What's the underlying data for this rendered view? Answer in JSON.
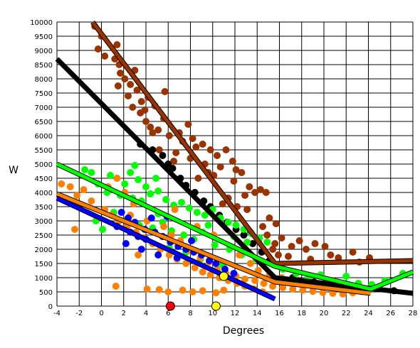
{
  "chart_data": {
    "type": "scatter",
    "xlabel": "Degrees",
    "ylabel": "W",
    "xlim": [
      -4,
      28
    ],
    "ylim": [
      0,
      10000
    ],
    "x_ticks": [
      "-4",
      "-2",
      "0",
      "2",
      "4",
      "6",
      "8",
      "10",
      "12",
      "14",
      "16",
      "18",
      "20",
      "22",
      "24",
      "26",
      "28"
    ],
    "y_ticks": [
      "0",
      "500",
      "1000",
      "1500",
      "2000",
      "2500",
      "3000",
      "3500",
      "4000",
      "4500",
      "5000",
      "5500",
      "6000",
      "6500",
      "7000",
      "7500",
      "8000",
      "8500",
      "9000",
      "9500",
      "10000"
    ],
    "grid": true,
    "legend": "none",
    "series": [
      {
        "color": "#993300",
        "points": [
          [
            -0.6,
            9850
          ],
          [
            0,
            9500
          ],
          [
            1.4,
            9200
          ],
          [
            -0.3,
            9050
          ],
          [
            0.3,
            8800
          ],
          [
            1.2,
            8700
          ],
          [
            1.6,
            8500
          ],
          [
            1.7,
            8200
          ],
          [
            2.1,
            8000
          ],
          [
            2.6,
            7800
          ],
          [
            3.2,
            7600
          ],
          [
            3.0,
            8300
          ],
          [
            1.5,
            7750
          ],
          [
            2.4,
            7400
          ],
          [
            3.6,
            7200
          ],
          [
            4.2,
            7350
          ],
          [
            5.7,
            7550
          ],
          [
            2.8,
            7000
          ],
          [
            3.5,
            6800
          ],
          [
            4.0,
            6500
          ],
          [
            4.4,
            6300
          ],
          [
            4.6,
            6100
          ],
          [
            5.1,
            6200
          ],
          [
            5.6,
            6600
          ],
          [
            6.1,
            6000
          ],
          [
            7.0,
            6100
          ],
          [
            7.8,
            6400
          ],
          [
            8.2,
            5900
          ],
          [
            8.5,
            5600
          ],
          [
            9.1,
            5700
          ],
          [
            9.8,
            5500
          ],
          [
            10.4,
            5300
          ],
          [
            11.2,
            5500
          ],
          [
            11.8,
            5100
          ],
          [
            10.7,
            4900
          ],
          [
            12.1,
            4800
          ],
          [
            9.6,
            4700
          ],
          [
            8.7,
            4500
          ],
          [
            11.9,
            4400
          ],
          [
            12.6,
            4700
          ],
          [
            13.3,
            4200
          ],
          [
            13.8,
            4000
          ],
          [
            14.3,
            4100
          ],
          [
            12.9,
            3900
          ],
          [
            11.4,
            3800
          ],
          [
            10.9,
            3600
          ],
          [
            12.2,
            3500
          ],
          [
            13.1,
            3400
          ],
          [
            14.8,
            4000
          ],
          [
            15.1,
            3100
          ],
          [
            15.7,
            2900
          ],
          [
            14.5,
            2800
          ],
          [
            13.4,
            2600
          ],
          [
            14.9,
            2500
          ],
          [
            16.2,
            2400
          ],
          [
            15.6,
            2200
          ],
          [
            17.1,
            2100
          ],
          [
            17.8,
            2300
          ],
          [
            18.4,
            2000
          ],
          [
            19.2,
            2200
          ],
          [
            20.1,
            2100
          ],
          [
            20.6,
            1800
          ],
          [
            21.3,
            1700
          ],
          [
            22.6,
            1900
          ],
          [
            24.1,
            1700
          ],
          [
            23.2,
            1550
          ],
          [
            5.2,
            5500
          ],
          [
            6.7,
            5400
          ],
          [
            7.3,
            5800
          ],
          [
            6.5,
            5100
          ],
          [
            8.0,
            5200
          ],
          [
            9.3,
            5000
          ],
          [
            10.1,
            4600
          ],
          [
            15.4,
            2000
          ],
          [
            16.8,
            1750
          ],
          [
            18.8,
            1650
          ],
          [
            14.1,
            2300
          ],
          [
            15.9,
            1800
          ],
          [
            3.9,
            6900
          ],
          [
            4.8,
            7050
          ]
        ],
        "trend": [
          [
            -0.8,
            10000
          ],
          [
            15.6,
            1500
          ],
          [
            28,
            1600
          ]
        ]
      },
      {
        "color": "#000000",
        "points": [
          [
            3.5,
            5700
          ],
          [
            4.6,
            5500
          ],
          [
            5.5,
            5300
          ],
          [
            6.0,
            5000
          ],
          [
            6.4,
            4850
          ],
          [
            7.1,
            4500
          ],
          [
            7.6,
            4250
          ],
          [
            8.4,
            4000
          ],
          [
            9.2,
            3700
          ],
          [
            9.8,
            3500
          ],
          [
            10.6,
            3200
          ],
          [
            11.3,
            2950
          ],
          [
            12.1,
            2700
          ],
          [
            12.8,
            2500
          ],
          [
            13.6,
            2200
          ],
          [
            14.4,
            1900
          ],
          [
            15.1,
            1600
          ],
          [
            17.2,
            1000
          ],
          [
            19.1,
            850
          ],
          [
            21.2,
            700
          ],
          [
            23.1,
            620
          ],
          [
            26.3,
            540
          ]
        ],
        "trend": [
          [
            -4,
            8700
          ],
          [
            15.6,
            1000
          ],
          [
            28,
            450
          ]
        ]
      },
      {
        "color": "#00ff00",
        "points": [
          [
            -1.5,
            4800
          ],
          [
            -0.9,
            4700
          ],
          [
            -0.3,
            4300
          ],
          [
            0.8,
            4600
          ],
          [
            1.4,
            4500
          ],
          [
            2.1,
            4300
          ],
          [
            2.6,
            4700
          ],
          [
            3.3,
            4450
          ],
          [
            4.0,
            4200
          ],
          [
            0.5,
            4000
          ],
          [
            1.7,
            3900
          ],
          [
            2.8,
            3800
          ],
          [
            3.6,
            3700
          ],
          [
            4.4,
            3950
          ],
          [
            5.1,
            4050
          ],
          [
            5.8,
            3750
          ],
          [
            6.5,
            3550
          ],
          [
            7.2,
            3650
          ],
          [
            7.9,
            3450
          ],
          [
            8.6,
            3300
          ],
          [
            9.3,
            3200
          ],
          [
            10.0,
            3400
          ],
          [
            10.7,
            3100
          ],
          [
            11.4,
            2950
          ],
          [
            12.1,
            2850
          ],
          [
            12.8,
            2700
          ],
          [
            13.5,
            2550
          ],
          [
            14.2,
            2400
          ],
          [
            14.9,
            2250
          ],
          [
            1.1,
            3300
          ],
          [
            2.3,
            3050
          ],
          [
            3.4,
            2850
          ],
          [
            4.6,
            2750
          ],
          [
            5.5,
            2950
          ],
          [
            6.3,
            2650
          ],
          [
            7.4,
            2500
          ],
          [
            8.3,
            2350
          ],
          [
            9.1,
            2600
          ],
          [
            10.2,
            2150
          ],
          [
            11.5,
            2000
          ],
          [
            12.6,
            1800
          ],
          [
            13.9,
            1650
          ],
          [
            16.3,
            1300
          ],
          [
            17.5,
            1150
          ],
          [
            18.6,
            1000
          ],
          [
            19.7,
            1100
          ],
          [
            20.8,
            900
          ],
          [
            22.0,
            1050
          ],
          [
            23.1,
            800
          ],
          [
            24.3,
            760
          ],
          [
            25.5,
            900
          ],
          [
            27.1,
            1150
          ],
          [
            0.1,
            2700
          ],
          [
            -0.5,
            3000
          ],
          [
            6.1,
            2050
          ],
          [
            7.6,
            1900
          ],
          [
            8.9,
            1650
          ],
          [
            10.9,
            1450
          ],
          [
            5.1,
            3250
          ],
          [
            9.6,
            2850
          ],
          [
            11.9,
            2450
          ],
          [
            13.1,
            2250
          ],
          [
            4.9,
            4500
          ],
          [
            3.0,
            4950
          ]
        ],
        "trend": [
          [
            -4,
            5000
          ],
          [
            15.6,
            1400
          ],
          [
            24.2,
            600
          ],
          [
            28,
            1200
          ]
        ]
      },
      {
        "color": "#ff8000",
        "points": [
          [
            -3.6,
            4300
          ],
          [
            -2.8,
            4200
          ],
          [
            -2.2,
            3900
          ],
          [
            -1.6,
            4100
          ],
          [
            -0.9,
            3700
          ],
          [
            -2.4,
            2700
          ],
          [
            0.3,
            3400
          ],
          [
            0.9,
            3200
          ],
          [
            1.6,
            3000
          ],
          [
            2.3,
            2800
          ],
          [
            3.1,
            2600
          ],
          [
            3.8,
            2400
          ],
          [
            4.6,
            2200
          ],
          [
            5.3,
            2000
          ],
          [
            6.1,
            1800
          ],
          [
            6.8,
            1650
          ],
          [
            7.6,
            1500
          ],
          [
            8.4,
            1350
          ],
          [
            9.1,
            1200
          ],
          [
            9.8,
            1100
          ],
          [
            10.6,
            1000
          ],
          [
            11.4,
            900
          ],
          [
            12.2,
            800
          ],
          [
            12.9,
            700
          ],
          [
            13.7,
            600
          ],
          [
            14.5,
            500
          ],
          [
            1.4,
            4500
          ],
          [
            2.1,
            4000
          ],
          [
            0.6,
            4200
          ],
          [
            2.9,
            3600
          ],
          [
            2.6,
            3200
          ],
          [
            4.1,
            3000
          ],
          [
            5.6,
            2800
          ],
          [
            6.3,
            2500
          ],
          [
            7.1,
            2300
          ],
          [
            8.0,
            1950
          ],
          [
            8.9,
            1700
          ],
          [
            9.7,
            1550
          ],
          [
            10.4,
            1300
          ],
          [
            11.2,
            1150
          ],
          [
            12.1,
            1050
          ],
          [
            12.9,
            950
          ],
          [
            13.8,
            900
          ],
          [
            14.6,
            800
          ],
          [
            15.4,
            700
          ],
          [
            16.3,
            650
          ],
          [
            17.2,
            600
          ],
          [
            18.1,
            560
          ],
          [
            19.0,
            520
          ],
          [
            19.9,
            480
          ],
          [
            20.8,
            450
          ],
          [
            21.7,
            430
          ],
          [
            22.6,
            470
          ],
          [
            23.4,
            510
          ],
          [
            4.1,
            600
          ],
          [
            5.2,
            580
          ],
          [
            6.0,
            500
          ],
          [
            7.3,
            560
          ],
          [
            8.2,
            500
          ],
          [
            9.1,
            540
          ],
          [
            10.3,
            470
          ],
          [
            11.0,
            560
          ],
          [
            1.3,
            700
          ],
          [
            3.3,
            1800
          ],
          [
            6.6,
            3400
          ],
          [
            8.6,
            2800
          ],
          [
            10.1,
            2500
          ],
          [
            12.4,
            1800
          ],
          [
            13.4,
            1500
          ],
          [
            14.1,
            1250
          ],
          [
            15.1,
            1100
          ],
          [
            16.2,
            1000
          ]
        ],
        "trend": [
          [
            -4,
            3950
          ],
          [
            15.6,
            850
          ],
          [
            24.2,
            450
          ]
        ]
      },
      {
        "color": "#0000ff",
        "points": [
          [
            1.8,
            3300
          ],
          [
            2.4,
            3100
          ],
          [
            3.0,
            2950
          ],
          [
            1.4,
            2800
          ],
          [
            2.6,
            2600
          ],
          [
            3.3,
            2450
          ],
          [
            4.0,
            2350
          ],
          [
            4.8,
            2600
          ],
          [
            5.5,
            2450
          ],
          [
            6.2,
            2250
          ],
          [
            6.9,
            2100
          ],
          [
            7.6,
            2000
          ],
          [
            8.3,
            1900
          ],
          [
            9.0,
            1800
          ],
          [
            9.7,
            1600
          ],
          [
            10.3,
            1500
          ],
          [
            11.1,
            1300
          ],
          [
            11.9,
            1150
          ],
          [
            2.2,
            2200
          ],
          [
            3.6,
            2000
          ],
          [
            5.1,
            1800
          ],
          [
            6.8,
            1700
          ],
          [
            8.1,
            2300
          ],
          [
            5.9,
            3150
          ],
          [
            4.5,
            3100
          ],
          [
            3.9,
            2700
          ]
        ],
        "trend": [
          [
            -4,
            3800
          ],
          [
            15.6,
            250
          ]
        ]
      }
    ],
    "markers": [
      {
        "color": "#ff0000",
        "x": 6.2,
        "y": 0
      },
      {
        "color": "#ffff00",
        "x": 10.3,
        "y": 0
      },
      {
        "color": "#ffff00",
        "x": 11.0,
        "y": 1050
      }
    ]
  }
}
